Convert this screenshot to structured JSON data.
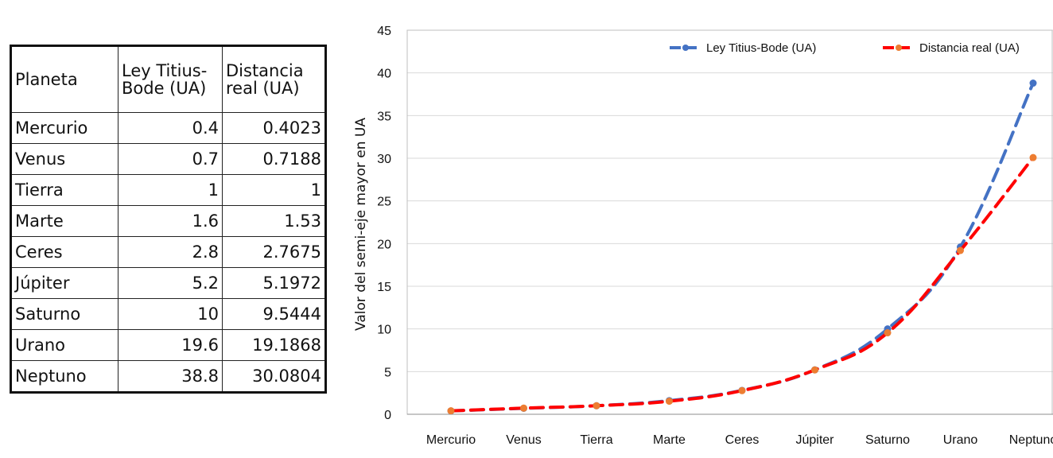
{
  "table": {
    "headers": {
      "planet": "Planeta",
      "titius_bode": "Ley Titius-Bode (UA)",
      "real": "Distancia real (UA)"
    },
    "rows": [
      {
        "planet": "Mercurio",
        "titius_bode": "0.4",
        "real": "0.4023"
      },
      {
        "planet": "Venus",
        "titius_bode": "0.7",
        "real": "0.7188"
      },
      {
        "planet": "Tierra",
        "titius_bode": "1",
        "real": "1"
      },
      {
        "planet": "Marte",
        "titius_bode": "1.6",
        "real": "1.53"
      },
      {
        "planet": "Ceres",
        "titius_bode": "2.8",
        "real": "2.7675"
      },
      {
        "planet": "Júpiter",
        "titius_bode": "5.2",
        "real": "5.1972"
      },
      {
        "planet": "Saturno",
        "titius_bode": "10",
        "real": "9.5444"
      },
      {
        "planet": "Urano",
        "titius_bode": "19.6",
        "real": "19.1868"
      },
      {
        "planet": "Neptuno",
        "titius_bode": "38.8",
        "real": "30.0804"
      }
    ]
  },
  "chart_data": {
    "type": "line",
    "title": "",
    "xlabel": "",
    "ylabel": "Valor del semi-eje mayor en UA",
    "categories": [
      "Mercurio",
      "Venus",
      "Tierra",
      "Marte",
      "Ceres",
      "Júpiter",
      "Saturno",
      "Urano",
      "Neptuno"
    ],
    "ylim": [
      0,
      45
    ],
    "yticks": [
      0,
      5,
      10,
      15,
      20,
      25,
      30,
      35,
      40,
      45
    ],
    "grid": true,
    "legend_position": "top-right",
    "series": [
      {
        "name": "Ley Titius-Bode (UA)",
        "color": "#4472C4",
        "marker_color": "#4472C4",
        "style": "dashed",
        "values": [
          0.4,
          0.7,
          1,
          1.6,
          2.8,
          5.2,
          10,
          19.6,
          38.8
        ]
      },
      {
        "name": "Distancia real (UA)",
        "color": "#FF0000",
        "marker_color": "#ED7D31",
        "style": "dashed",
        "values": [
          0.4023,
          0.7188,
          1,
          1.53,
          2.7675,
          5.1972,
          9.5444,
          19.1868,
          30.0804
        ]
      }
    ]
  }
}
